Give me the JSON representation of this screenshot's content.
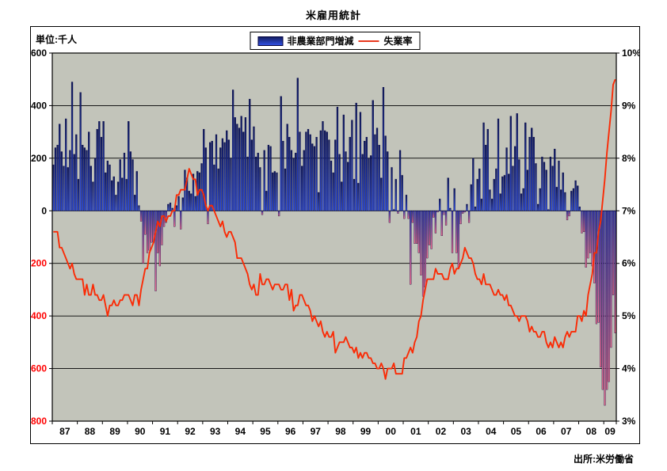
{
  "page": {
    "title": "米雇用統計",
    "unit_label": "単位:千人",
    "source": "出所:米労働省"
  },
  "legend": {
    "bars_label": "非農業部門増減",
    "line_label": "失業率"
  },
  "colors": {
    "plot_bg": "#c2c4ba",
    "grid": "#000000",
    "bar_pos_top": "#101a5c",
    "bar_pos_bottom": "#2f4fe0",
    "bar_neg_top": "#3a3cae",
    "bar_neg_bottom": "#ee6e8e",
    "bar_border": "#000040",
    "line": "#fa2b06",
    "negative_tick_label": "#ff0000",
    "tick_label": "#000000"
  },
  "chart_data": {
    "type": "bar+line combo",
    "title": "米雇用統計",
    "period": "1987-01 to 2009-06 (monthly)",
    "grid": "horizontal only",
    "legend_position": "top-center",
    "x_tick_labels": [
      "87",
      "88",
      "89",
      "90",
      "91",
      "92",
      "93",
      "94",
      "95",
      "96",
      "97",
      "98",
      "99",
      "00",
      "01",
      "02",
      "03",
      "04",
      "05",
      "06",
      "07",
      "08",
      "09"
    ],
    "left_axis": {
      "title": "単位:千人",
      "ticks": [
        "600",
        "400",
        "200",
        "0",
        "-200",
        "-400",
        "-600",
        "-800"
      ],
      "range": [
        -800,
        600
      ]
    },
    "right_axis": {
      "ticks": [
        "10%",
        "9%",
        "8%",
        "7%",
        "6%",
        "5%",
        "4%",
        "3%"
      ],
      "range": [
        3,
        10
      ]
    },
    "series": [
      {
        "name": "非農業部門増減",
        "type": "bar",
        "axis": "left",
        "values": [
          175,
          240,
          250,
          330,
          225,
          170,
          350,
          165,
          230,
          490,
          215,
          290,
          120,
          450,
          250,
          240,
          230,
          300,
          170,
          110,
          200,
          310,
          340,
          280,
          340,
          145,
          190,
          175,
          115,
          130,
          60,
          110,
          195,
          125,
          220,
          120,
          340,
          225,
          195,
          60,
          150,
          20,
          -40,
          -200,
          -90,
          -160,
          -150,
          -120,
          -120,
          -305,
          -160,
          -210,
          -130,
          -60,
          -45,
          25,
          30,
          10,
          -60,
          20,
          55,
          -70,
          50,
          155,
          125,
          75,
          65,
          140,
          55,
          150,
          145,
          180,
          310,
          240,
          -50,
          260,
          265,
          175,
          290,
          160,
          240,
          275,
          260,
          305,
          270,
          200,
          460,
          355,
          330,
          315,
          360,
          300,
          355,
          205,
          425,
          270,
          320,
          205,
          220,
          165,
          -15,
          230,
          75,
          250,
          245,
          145,
          150,
          145,
          -20,
          435,
          265,
          160,
          330,
          280,
          230,
          200,
          220,
          505,
          300,
          170,
          230,
          300,
          310,
          290,
          255,
          245,
          280,
          70,
          305,
          340,
          305,
          300,
          270,
          190,
          145,
          270,
          395,
          215,
          110,
          365,
          225,
          185,
          280,
          345,
          120,
          410,
          105,
          375,
          215,
          265,
          280,
          200,
          210,
          420,
          290,
          315,
          250,
          125,
          470,
          285,
          225,
          -45,
          165,
          5,
          120,
          -10,
          230,
          135,
          -30,
          60,
          -30,
          -280,
          -45,
          -125,
          -125,
          -160,
          -245,
          -325,
          -290,
          -180,
          -130,
          -145,
          -25,
          -85,
          -5,
          45,
          -95,
          -15,
          -55,
          125,
          10,
          -160,
          85,
          -160,
          -215,
          -50,
          -10,
          -5,
          25,
          -45,
          100,
          200,
          15,
          120,
          160,
          45,
          335,
          250,
          310,
          80,
          45,
          120,
          160,
          350,
          65,
          130,
          135,
          240,
          140,
          360,
          170,
          245,
          370,
          195,
          65,
          85,
          335,
          155,
          280,
          315,
          280,
          180,
          25,
          85,
          205,
          185,
          155,
          5,
          205,
          170,
          235,
          90,
          190,
          80,
          145,
          70,
          -35,
          -20,
          75,
          85,
          115,
          95,
          15,
          -85,
          -80,
          -215,
          -180,
          -160,
          -210,
          -275,
          -430,
          -425,
          -595,
          -680,
          -740,
          -680,
          -650,
          -520,
          -320,
          -465
        ]
      },
      {
        "name": "失業率",
        "type": "line",
        "axis": "right",
        "unit": "%",
        "values": [
          6.6,
          6.6,
          6.6,
          6.3,
          6.3,
          6.2,
          6.1,
          6.0,
          5.9,
          6.0,
          5.8,
          5.7,
          5.7,
          5.7,
          5.7,
          5.4,
          5.6,
          5.4,
          5.4,
          5.6,
          5.4,
          5.4,
          5.3,
          5.3,
          5.4,
          5.2,
          5.0,
          5.2,
          5.2,
          5.3,
          5.2,
          5.2,
          5.3,
          5.3,
          5.4,
          5.4,
          5.4,
          5.3,
          5.2,
          5.4,
          5.4,
          5.2,
          5.5,
          5.7,
          5.9,
          5.9,
          6.2,
          6.3,
          6.4,
          6.6,
          6.8,
          6.7,
          6.9,
          6.9,
          6.8,
          6.9,
          6.9,
          7.0,
          7.0,
          7.3,
          7.3,
          7.4,
          7.4,
          7.4,
          7.6,
          7.8,
          7.7,
          7.6,
          7.6,
          7.3,
          7.4,
          7.4,
          7.3,
          7.1,
          7.0,
          7.1,
          7.1,
          7.0,
          6.9,
          6.8,
          6.7,
          6.8,
          6.6,
          6.5,
          6.6,
          6.6,
          6.5,
          6.4,
          6.1,
          6.1,
          6.1,
          6.0,
          5.9,
          5.8,
          5.6,
          5.5,
          5.6,
          5.4,
          5.4,
          5.8,
          5.6,
          5.6,
          5.7,
          5.7,
          5.6,
          5.5,
          5.6,
          5.6,
          5.6,
          5.5,
          5.5,
          5.6,
          5.6,
          5.3,
          5.5,
          5.1,
          5.2,
          5.2,
          5.4,
          5.4,
          5.3,
          5.2,
          5.2,
          5.1,
          4.9,
          5.0,
          4.9,
          4.8,
          4.9,
          4.7,
          4.6,
          4.7,
          4.6,
          4.6,
          4.7,
          4.3,
          4.4,
          4.5,
          4.5,
          4.5,
          4.6,
          4.5,
          4.4,
          4.4,
          4.3,
          4.4,
          4.2,
          4.3,
          4.2,
          4.3,
          4.3,
          4.2,
          4.2,
          4.1,
          4.1,
          4.0,
          4.0,
          4.1,
          4.0,
          3.8,
          4.0,
          4.0,
          4.0,
          4.1,
          3.9,
          3.9,
          3.9,
          3.9,
          4.2,
          4.2,
          4.3,
          4.4,
          4.3,
          4.5,
          4.6,
          4.9,
          5.0,
          5.3,
          5.5,
          5.7,
          5.7,
          5.7,
          5.7,
          5.9,
          5.8,
          5.8,
          5.8,
          5.7,
          5.7,
          5.7,
          5.9,
          6.0,
          5.8,
          5.9,
          5.9,
          6.0,
          6.1,
          6.3,
          6.2,
          6.1,
          6.1,
          6.0,
          5.8,
          5.7,
          5.7,
          5.6,
          5.8,
          5.6,
          5.6,
          5.6,
          5.5,
          5.4,
          5.4,
          5.5,
          5.4,
          5.4,
          5.3,
          5.4,
          5.2,
          5.2,
          5.1,
          5.0,
          5.0,
          4.9,
          5.0,
          5.0,
          5.0,
          4.9,
          4.7,
          4.8,
          4.7,
          4.7,
          4.6,
          4.6,
          4.7,
          4.7,
          4.5,
          4.4,
          4.5,
          4.4,
          4.6,
          4.5,
          4.4,
          4.5,
          4.4,
          4.6,
          4.7,
          4.6,
          4.7,
          4.7,
          4.7,
          5.0,
          5.0,
          4.9,
          5.1,
          5.0,
          5.4,
          5.6,
          5.8,
          6.2,
          6.2,
          6.6,
          6.8,
          7.2,
          7.6,
          8.1,
          8.5,
          8.9,
          9.4,
          9.5
        ]
      }
    ]
  }
}
